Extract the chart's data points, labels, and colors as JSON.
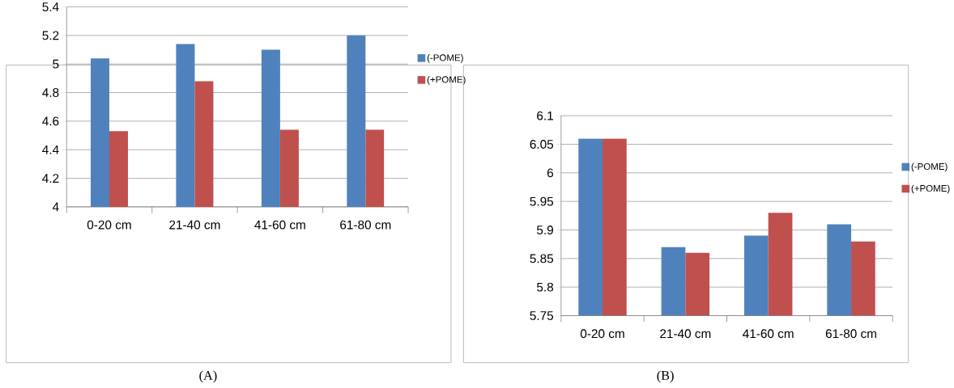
{
  "chart_data": [
    {
      "type": "bar",
      "categories": [
        "0-20 cm",
        "21-40 cm",
        "41-60 cm",
        "61-80 cm"
      ],
      "series": [
        {
          "name": "(-POME)",
          "color": "#4f81bd",
          "values": [
            5.04,
            5.14,
            5.1,
            5.2
          ]
        },
        {
          "name": "(+POME)",
          "color": "#c0504d",
          "values": [
            4.53,
            4.88,
            4.54,
            4.54
          ]
        }
      ],
      "ylim": [
        4,
        5.4
      ],
      "yticks": [
        4,
        4.2,
        4.4,
        4.6,
        4.8,
        5,
        5.2,
        5.4
      ],
      "grid": "y",
      "legend": "right",
      "annotations": [
        "(A)"
      ]
    },
    {
      "type": "bar",
      "categories": [
        "0-20 cm",
        "21-40 cm",
        "41-60 cm",
        "61-80 cm"
      ],
      "series": [
        {
          "name": "(-POME)",
          "color": "#4f81bd",
          "values": [
            6.06,
            5.87,
            5.89,
            5.91
          ]
        },
        {
          "name": "(+POME)",
          "color": "#c0504d",
          "values": [
            6.06,
            5.86,
            5.93,
            5.88
          ]
        }
      ],
      "ylim": [
        5.75,
        6.1
      ],
      "yticks": [
        5.75,
        5.8,
        5.85,
        5.9,
        5.95,
        6,
        6.05,
        6.1
      ],
      "grid": "y",
      "legend": "right",
      "annotations": [
        "(B)"
      ]
    }
  ]
}
